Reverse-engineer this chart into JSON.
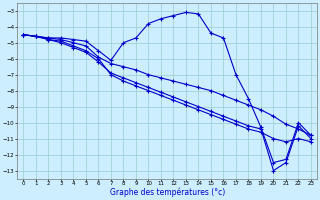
{
  "title": "Graphe des températures (°c)",
  "bg_color": "#cceeff",
  "grid_color": "#99cccc",
  "line_color": "#0000cc",
  "xlim": [
    -0.5,
    23.5
  ],
  "ylim": [
    -13.5,
    -2.5
  ],
  "xticks": [
    0,
    1,
    2,
    3,
    4,
    5,
    6,
    7,
    8,
    9,
    10,
    11,
    12,
    13,
    14,
    15,
    16,
    17,
    18,
    19,
    20,
    21,
    22,
    23
  ],
  "yticks": [
    -3,
    -4,
    -5,
    -6,
    -7,
    -8,
    -9,
    -10,
    -11,
    -12,
    -13
  ],
  "line1_x": [
    0,
    1,
    2,
    3,
    4,
    5,
    6,
    7,
    8,
    9,
    10,
    11,
    12,
    13,
    14,
    15,
    16,
    17,
    18,
    19,
    20,
    21,
    22,
    23
  ],
  "line1_y": [
    -4.5,
    -4.6,
    -4.7,
    -4.7,
    -4.8,
    -4.9,
    -5.5,
    -6.1,
    -5.0,
    -4.7,
    -3.8,
    -3.5,
    -3.3,
    -3.1,
    -3.2,
    -4.4,
    -4.7,
    -7.0,
    -8.5,
    -10.3,
    -12.5,
    -12.3,
    -10.0,
    -10.8
  ],
  "line2_x": [
    0,
    1,
    2,
    3,
    4,
    5,
    6,
    7,
    8,
    9,
    10,
    11,
    12,
    13,
    14,
    15,
    16,
    17,
    18,
    19,
    20,
    21,
    22,
    23
  ],
  "line2_y": [
    -4.5,
    -4.6,
    -4.7,
    -4.8,
    -5.0,
    -5.2,
    -5.9,
    -6.3,
    -6.5,
    -6.7,
    -7.0,
    -7.2,
    -7.4,
    -7.6,
    -7.8,
    -8.0,
    -8.3,
    -8.6,
    -8.9,
    -9.2,
    -9.6,
    -10.1,
    -10.4,
    -10.8
  ],
  "line3_x": [
    0,
    1,
    2,
    3,
    4,
    5,
    6,
    7,
    8,
    9,
    10,
    11,
    12,
    13,
    14,
    15,
    16,
    17,
    18,
    19,
    20,
    21,
    22,
    23
  ],
  "line3_y": [
    -4.5,
    -4.6,
    -4.8,
    -4.9,
    -5.2,
    -5.5,
    -6.0,
    -7.0,
    -7.4,
    -7.7,
    -8.0,
    -8.3,
    -8.6,
    -8.9,
    -9.2,
    -9.5,
    -9.8,
    -10.1,
    -10.4,
    -10.6,
    -11.0,
    -11.2,
    -11.0,
    -11.2
  ],
  "line4_x": [
    0,
    1,
    2,
    3,
    4,
    5,
    6,
    7,
    8,
    9,
    10,
    11,
    12,
    13,
    14,
    15,
    16,
    17,
    18,
    19,
    20,
    21,
    22,
    23
  ],
  "line4_y": [
    -4.5,
    -4.6,
    -4.8,
    -5.0,
    -5.3,
    -5.6,
    -6.2,
    -6.9,
    -7.2,
    -7.5,
    -7.8,
    -8.1,
    -8.4,
    -8.7,
    -9.0,
    -9.3,
    -9.6,
    -9.9,
    -10.2,
    -10.4,
    -13.0,
    -12.5,
    -10.2,
    -11.0
  ]
}
